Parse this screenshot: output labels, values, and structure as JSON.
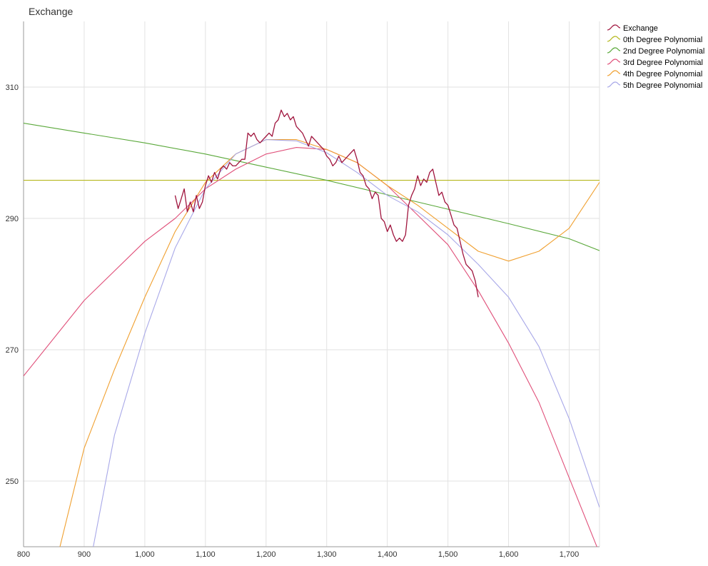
{
  "chart_data": {
    "type": "line",
    "title": "Exchange",
    "xlabel": "",
    "ylabel": "",
    "xlim": [
      800,
      1750
    ],
    "ylim": [
      240,
      320
    ],
    "x_ticks": [
      800,
      900,
      1000,
      1100,
      1200,
      1300,
      1400,
      1500,
      1600,
      1700
    ],
    "x_tick_labels": [
      "800",
      "900",
      "1,000",
      "1,100",
      "1,200",
      "1,300",
      "1,400",
      "1,500",
      "1,600",
      "1,700"
    ],
    "y_ticks": [
      250,
      270,
      290,
      310
    ],
    "y_tick_labels": [
      "250",
      "270",
      "290",
      "310"
    ],
    "grid": true,
    "legend_position": "right",
    "series": [
      {
        "name": "Exchange",
        "color": "#a0153e",
        "x": [
          1050,
          1055,
          1060,
          1065,
          1070,
          1075,
          1080,
          1085,
          1090,
          1095,
          1100,
          1105,
          1110,
          1115,
          1120,
          1125,
          1130,
          1135,
          1140,
          1145,
          1150,
          1155,
          1160,
          1165,
          1170,
          1175,
          1180,
          1185,
          1190,
          1195,
          1200,
          1205,
          1210,
          1215,
          1220,
          1225,
          1230,
          1235,
          1240,
          1245,
          1250,
          1255,
          1260,
          1265,
          1270,
          1275,
          1280,
          1285,
          1290,
          1295,
          1300,
          1305,
          1310,
          1315,
          1320,
          1325,
          1330,
          1335,
          1340,
          1345,
          1350,
          1355,
          1360,
          1365,
          1370,
          1375,
          1380,
          1385,
          1390,
          1395,
          1400,
          1405,
          1410,
          1415,
          1420,
          1425,
          1430,
          1435,
          1440,
          1445,
          1450,
          1455,
          1460,
          1465,
          1470,
          1475,
          1480,
          1485,
          1490,
          1495,
          1500,
          1505,
          1510,
          1515,
          1520,
          1525,
          1530,
          1535,
          1540,
          1545,
          1550
        ],
        "values": [
          293.5,
          291.5,
          293.0,
          294.5,
          291.0,
          292.5,
          291.0,
          293.5,
          291.5,
          292.5,
          295.0,
          296.5,
          295.5,
          297.0,
          296.0,
          297.5,
          298.0,
          297.5,
          298.5,
          298.0,
          298.0,
          298.5,
          299.0,
          299.0,
          303.0,
          302.5,
          303.0,
          302.0,
          301.5,
          302.0,
          302.5,
          303.0,
          302.5,
          304.5,
          305.0,
          306.5,
          305.5,
          306.0,
          305.0,
          305.5,
          304.0,
          303.5,
          303.0,
          302.0,
          301.0,
          302.5,
          302.0,
          301.5,
          301.0,
          300.5,
          299.5,
          299.0,
          298.0,
          298.5,
          299.5,
          298.5,
          299.0,
          299.5,
          300.0,
          300.5,
          299.0,
          297.0,
          296.5,
          295.0,
          294.5,
          293.0,
          294.0,
          293.5,
          290.0,
          289.5,
          288.0,
          289.0,
          287.5,
          286.5,
          287.0,
          286.5,
          287.5,
          292.0,
          293.5,
          294.5,
          296.5,
          295.0,
          296.0,
          295.5,
          297.0,
          297.5,
          295.5,
          293.5,
          294.0,
          292.5,
          292.0,
          290.5,
          289.0,
          288.5,
          286.5,
          284.5,
          283.0,
          282.5,
          282.0,
          280.5,
          278.0
        ]
      },
      {
        "name": "0th Degree Polynomial",
        "color": "#b5b81e",
        "x": [
          800,
          1750
        ],
        "values": [
          295.8,
          295.8
        ]
      },
      {
        "name": "2nd Degree Polynomial",
        "color": "#5aa83a",
        "x": [
          800,
          900,
          1000,
          1100,
          1200,
          1300,
          1400,
          1500,
          1600,
          1700,
          1750
        ],
        "values": [
          304.5,
          303.0,
          301.5,
          299.8,
          297.8,
          295.8,
          293.6,
          291.4,
          289.2,
          286.9,
          285.1
        ]
      },
      {
        "name": "3rd Degree Polynomial",
        "color": "#e0507a",
        "x": [
          800,
          900,
          1000,
          1050,
          1100,
          1150,
          1200,
          1250,
          1300,
          1350,
          1400,
          1450,
          1500,
          1550,
          1600,
          1650,
          1700,
          1750
        ],
        "values": [
          266.0,
          277.5,
          286.5,
          290.0,
          294.5,
          297.5,
          299.8,
          300.8,
          300.5,
          298.5,
          295.0,
          290.5,
          286.0,
          279.0,
          271.0,
          262.0,
          250.5,
          239.0
        ]
      },
      {
        "name": "4th Degree Polynomial",
        "color": "#f0a030",
        "x": [
          860,
          900,
          950,
          1000,
          1050,
          1100,
          1150,
          1200,
          1250,
          1300,
          1350,
          1400,
          1450,
          1500,
          1550,
          1600,
          1650,
          1700,
          1750
        ],
        "values": [
          240.0,
          255.0,
          267.0,
          278.0,
          288.0,
          295.5,
          299.8,
          302.0,
          302.0,
          300.5,
          298.5,
          295.0,
          292.0,
          288.5,
          285.0,
          283.5,
          285.0,
          288.5,
          295.5
        ]
      },
      {
        "name": "5th Degree Polynomial",
        "color": "#a8a8e8",
        "x": [
          915,
          950,
          1000,
          1050,
          1100,
          1150,
          1200,
          1250,
          1300,
          1350,
          1400,
          1450,
          1500,
          1550,
          1600,
          1650,
          1700,
          1750
        ],
        "values": [
          240.0,
          257.0,
          272.5,
          285.5,
          294.5,
          299.8,
          302.0,
          301.8,
          300.0,
          297.0,
          293.5,
          291.0,
          287.5,
          283.0,
          278.0,
          270.5,
          259.5,
          246.0
        ]
      }
    ]
  }
}
